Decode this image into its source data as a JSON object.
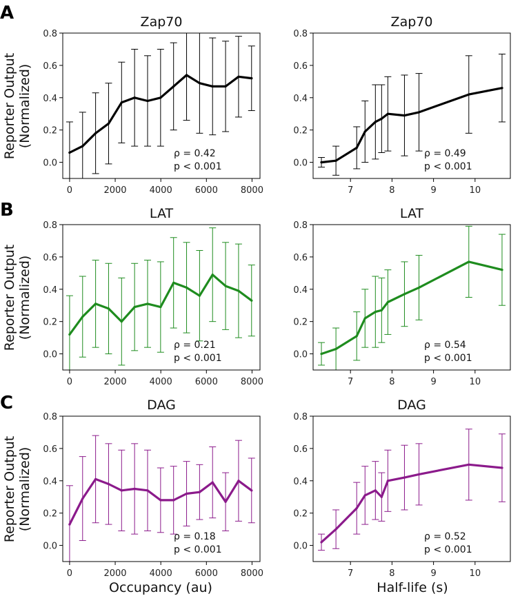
{
  "figure": {
    "xlabel_left": "Occupancy (au)",
    "xlabel_right": "Half-life (s)"
  },
  "rows": [
    {
      "letter": "A",
      "ylabel_1": "Reporter Output",
      "ylabel_2": "(Normalized)"
    },
    {
      "letter": "B",
      "ylabel_1": "Reporter Output",
      "ylabel_2": "(Normalized)"
    },
    {
      "letter": "C",
      "ylabel_1": "Reporter Output",
      "ylabel_2": "(Normalized)"
    }
  ],
  "chart_data": [
    {
      "type": "line",
      "row": 0,
      "col": 0,
      "color": "#000000",
      "title": "Zap70",
      "xlim": [
        -300,
        8350
      ],
      "ylim": [
        -0.1,
        0.8
      ],
      "xticks": [
        0,
        2000,
        4000,
        6000,
        8000
      ],
      "yticks": [
        0.0,
        0.2,
        0.4,
        0.6,
        0.8
      ],
      "x": [
        0,
        570,
        1140,
        1710,
        2280,
        2850,
        3420,
        3990,
        4560,
        5130,
        5700,
        6270,
        6840,
        7410,
        7980
      ],
      "y": [
        0.06,
        0.1,
        0.18,
        0.24,
        0.37,
        0.4,
        0.38,
        0.4,
        0.47,
        0.54,
        0.49,
        0.47,
        0.47,
        0.53,
        0.52
      ],
      "err": [
        0.19,
        0.21,
        0.25,
        0.25,
        0.25,
        0.3,
        0.28,
        0.3,
        0.27,
        0.28,
        0.31,
        0.3,
        0.28,
        0.25,
        0.2
      ],
      "stat_rho": "ρ = 0.42",
      "stat_p": "p < 0.001"
    },
    {
      "type": "line",
      "row": 0,
      "col": 1,
      "color": "#000000",
      "title": "Zap70",
      "xlim": [
        6.1,
        10.85
      ],
      "ylim": [
        -0.1,
        0.8
      ],
      "xticks": [
        7,
        8,
        9,
        10
      ],
      "yticks": [
        0.0,
        0.2,
        0.4,
        0.6,
        0.8
      ],
      "x": [
        6.3,
        6.65,
        7.15,
        7.35,
        7.6,
        7.75,
        7.9,
        8.3,
        8.65,
        9.85,
        10.65
      ],
      "y": [
        0.0,
        0.01,
        0.09,
        0.19,
        0.25,
        0.27,
        0.3,
        0.29,
        0.31,
        0.42,
        0.46
      ],
      "err": [
        0.03,
        0.09,
        0.13,
        0.19,
        0.23,
        0.21,
        0.23,
        0.25,
        0.24,
        0.24,
        0.21
      ],
      "stat_rho": "ρ = 0.49",
      "stat_p": "p < 0.001"
    },
    {
      "type": "line",
      "row": 1,
      "col": 0,
      "color": "#1e8c1e",
      "title": "LAT",
      "xlim": [
        -300,
        8350
      ],
      "ylim": [
        -0.1,
        0.8
      ],
      "xticks": [
        0,
        2000,
        4000,
        6000,
        8000
      ],
      "yticks": [
        0.0,
        0.2,
        0.4,
        0.6,
        0.8
      ],
      "x": [
        0,
        570,
        1140,
        1710,
        2280,
        2850,
        3420,
        3990,
        4560,
        5130,
        5700,
        6270,
        6840,
        7410,
        7980
      ],
      "y": [
        0.12,
        0.23,
        0.31,
        0.28,
        0.2,
        0.29,
        0.31,
        0.29,
        0.44,
        0.41,
        0.36,
        0.49,
        0.42,
        0.39,
        0.33
      ],
      "err": [
        0.24,
        0.25,
        0.27,
        0.28,
        0.27,
        0.27,
        0.27,
        0.28,
        0.28,
        0.28,
        0.28,
        0.29,
        0.27,
        0.29,
        0.22
      ],
      "stat_rho": "ρ = 0.21",
      "stat_p": "p < 0.001"
    },
    {
      "type": "line",
      "row": 1,
      "col": 1,
      "color": "#1e8c1e",
      "title": "LAT",
      "xlim": [
        6.1,
        10.85
      ],
      "ylim": [
        -0.1,
        0.8
      ],
      "xticks": [
        7,
        8,
        9,
        10
      ],
      "yticks": [
        0.0,
        0.2,
        0.4,
        0.6,
        0.8
      ],
      "x": [
        6.3,
        6.65,
        7.15,
        7.35,
        7.6,
        7.75,
        7.9,
        8.3,
        8.65,
        9.85,
        10.65
      ],
      "y": [
        0.0,
        0.03,
        0.11,
        0.22,
        0.26,
        0.27,
        0.32,
        0.37,
        0.41,
        0.57,
        0.52
      ],
      "err": [
        0.07,
        0.13,
        0.15,
        0.18,
        0.22,
        0.2,
        0.2,
        0.2,
        0.2,
        0.22,
        0.22
      ],
      "stat_rho": "ρ = 0.54",
      "stat_p": "p < 0.001"
    },
    {
      "type": "line",
      "row": 2,
      "col": 0,
      "color": "#8b1a8b",
      "title": "DAG",
      "xlim": [
        -300,
        8350
      ],
      "ylim": [
        -0.1,
        0.8
      ],
      "xticks": [
        0,
        2000,
        4000,
        6000,
        8000
      ],
      "yticks": [
        0.0,
        0.2,
        0.4,
        0.6,
        0.8
      ],
      "x": [
        0,
        570,
        1140,
        1710,
        2280,
        2850,
        3420,
        3990,
        4560,
        5130,
        5700,
        6270,
        6840,
        7410,
        7980
      ],
      "y": [
        0.13,
        0.29,
        0.41,
        0.38,
        0.34,
        0.35,
        0.34,
        0.28,
        0.28,
        0.32,
        0.33,
        0.39,
        0.27,
        0.4,
        0.34
      ],
      "err": [
        0.24,
        0.26,
        0.27,
        0.25,
        0.25,
        0.28,
        0.25,
        0.2,
        0.21,
        0.2,
        0.17,
        0.22,
        0.18,
        0.25,
        0.2
      ],
      "stat_rho": "ρ = 0.18",
      "stat_p": "p < 0.001"
    },
    {
      "type": "line",
      "row": 2,
      "col": 1,
      "color": "#8b1a8b",
      "title": "DAG",
      "xlim": [
        6.1,
        10.85
      ],
      "ylim": [
        -0.1,
        0.8
      ],
      "xticks": [
        7,
        8,
        9,
        10
      ],
      "yticks": [
        0.0,
        0.2,
        0.4,
        0.6,
        0.8
      ],
      "x": [
        6.3,
        6.65,
        7.15,
        7.35,
        7.6,
        7.75,
        7.9,
        8.3,
        8.65,
        9.85,
        10.65
      ],
      "y": [
        0.02,
        0.1,
        0.23,
        0.31,
        0.34,
        0.3,
        0.4,
        0.42,
        0.44,
        0.5,
        0.48
      ],
      "err": [
        0.05,
        0.12,
        0.16,
        0.18,
        0.18,
        0.15,
        0.19,
        0.2,
        0.19,
        0.22,
        0.21
      ],
      "stat_rho": "ρ = 0.52",
      "stat_p": "p < 0.001"
    }
  ]
}
